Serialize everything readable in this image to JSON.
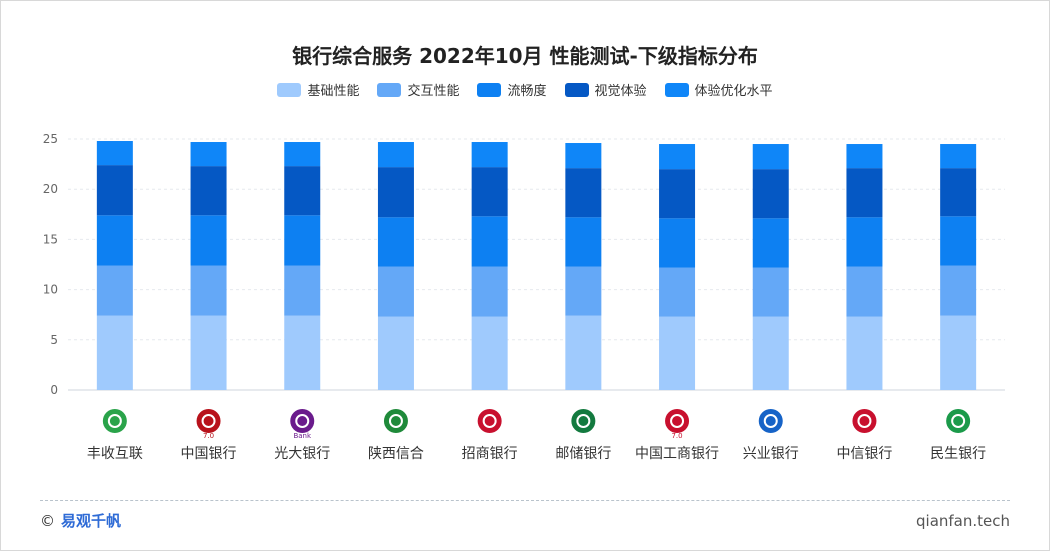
{
  "chart_data": {
    "type": "bar",
    "stacked": true,
    "title": "银行综合服务 2022年10月 性能测试-下级指标分布",
    "ylim": [
      0,
      25
    ],
    "yticks": [
      0,
      5,
      10,
      15,
      20,
      25
    ],
    "categories": [
      "丰收互联",
      "中国银行",
      "光大银行",
      "陕西信合",
      "招商银行",
      "邮储银行",
      "中国工商银行",
      "兴业银行",
      "中信银行",
      "民生银行"
    ],
    "series": [
      {
        "name": "基础性能",
        "color": "#9fcafd",
        "values": [
          7.4,
          7.4,
          7.4,
          7.3,
          7.3,
          7.4,
          7.3,
          7.3,
          7.3,
          7.4
        ]
      },
      {
        "name": "交互性能",
        "color": "#64a8f7",
        "values": [
          5.0,
          5.0,
          5.0,
          5.0,
          5.0,
          4.9,
          4.9,
          4.9,
          5.0,
          5.0
        ]
      },
      {
        "name": "流畅度",
        "color": "#0d80f2",
        "values": [
          5.0,
          5.0,
          5.0,
          4.9,
          5.0,
          4.9,
          4.9,
          4.9,
          4.9,
          4.9
        ]
      },
      {
        "name": "视觉体验",
        "color": "#0558c4",
        "values": [
          5.0,
          4.9,
          4.9,
          5.0,
          4.9,
          4.9,
          4.9,
          4.9,
          4.9,
          4.8
        ]
      },
      {
        "name": "体验优化水平",
        "color": "#0f86f8",
        "values": [
          2.4,
          2.4,
          2.4,
          2.5,
          2.5,
          2.5,
          2.5,
          2.5,
          2.4,
          2.4
        ]
      }
    ]
  },
  "icons": [
    "fengshou-logo-icon",
    "boc-logo-icon",
    "ceb-logo-icon",
    "shaanxi-rcc-logo-icon",
    "cmb-logo-icon",
    "psbc-logo-icon",
    "icbc-logo-icon",
    "cib-logo-icon",
    "citic-logo-icon",
    "cmbc-logo-icon"
  ],
  "icon_badges": [
    "",
    "7.0",
    "Bank",
    "",
    "",
    "",
    "7.0",
    "",
    "",
    ""
  ],
  "footer": {
    "brand": "易观千帆",
    "copyright": "©",
    "site": "qianfan.tech"
  }
}
